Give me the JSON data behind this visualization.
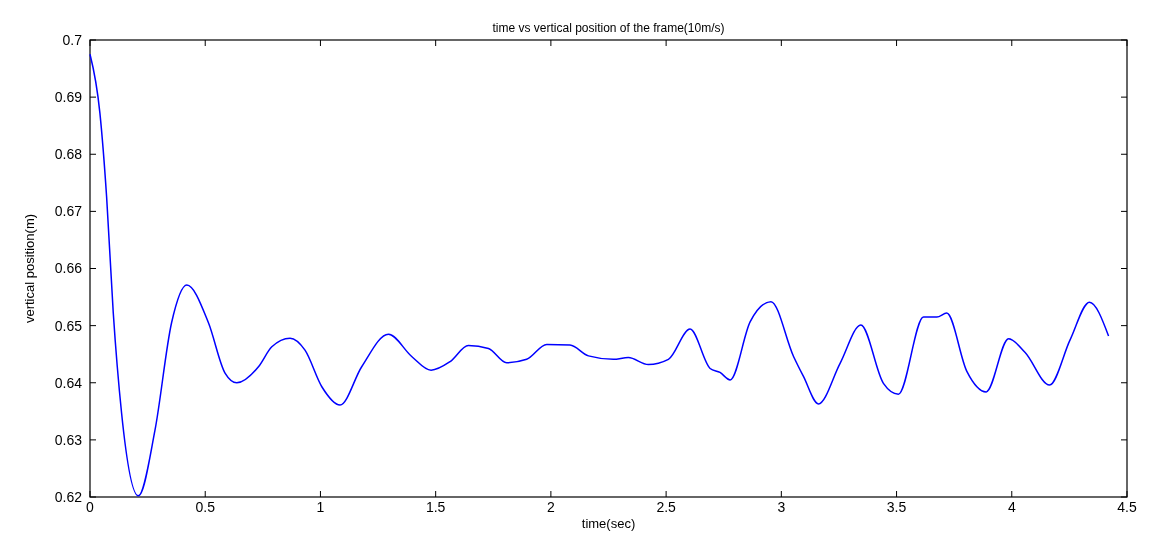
{
  "chart_data": {
    "type": "line",
    "title": "time vs vertical position of the frame(10m/s)",
    "xlabel": "time(sec)",
    "ylabel": "vertical position(m)",
    "x": [
      0,
      0.043,
      0.072,
      0.101,
      0.137,
      0.21,
      0.282,
      0.354,
      0.42,
      0.514,
      0.586,
      0.637,
      0.731,
      0.789,
      0.868,
      0.933,
      1.006,
      1.085,
      1.179,
      1.295,
      1.396,
      1.48,
      1.563,
      1.642,
      1.729,
      1.808,
      1.895,
      1.982,
      2.083,
      2.163,
      2.271,
      2.336,
      2.423,
      2.51,
      2.604,
      2.691,
      2.734,
      2.778,
      2.865,
      2.955,
      3.053,
      3.096,
      3.161,
      3.255,
      3.345,
      3.443,
      3.508,
      3.617,
      3.675,
      3.718,
      3.805,
      3.889,
      3.986,
      4.058,
      4.164,
      4.253,
      4.337,
      4.42
    ],
    "series": [
      {
        "color": "#0000ff",
        "values": [
          0.6975,
          0.6872,
          0.6726,
          0.6522,
          0.6347,
          0.6202,
          0.6317,
          0.6505,
          0.6571,
          0.6505,
          0.6417,
          0.64,
          0.6428,
          0.6463,
          0.6478,
          0.6457,
          0.6393,
          0.6361,
          0.6428,
          0.6485,
          0.6446,
          0.6422,
          0.6437,
          0.6465,
          0.646,
          0.6435,
          0.6441,
          0.6467,
          0.6466,
          0.6447,
          0.6441,
          0.6444,
          0.6432,
          0.6441,
          0.6494,
          0.6425,
          0.6418,
          0.6405,
          0.6507,
          0.6542,
          0.6446,
          0.6411,
          0.6363,
          0.6434,
          0.6501,
          0.6399,
          0.638,
          0.6515,
          0.6515,
          0.6522,
          0.642,
          0.6384,
          0.6477,
          0.6453,
          0.6396,
          0.6475,
          0.6541,
          0.6482
        ]
      }
    ],
    "xlim": [
      0,
      4.5
    ],
    "xticks": [
      0,
      0.5,
      1,
      1.5,
      2,
      2.5,
      3,
      3.5,
      4,
      4.5
    ],
    "ylim": [
      0.62,
      0.7
    ],
    "yticks": [
      0.62,
      0.63,
      0.64,
      0.65,
      0.66,
      0.67,
      0.68,
      0.69,
      {
        "value": 0.7,
        "label": "0.7"
      }
    ],
    "grid": false,
    "marker": "none",
    "line_style": "solid"
  }
}
